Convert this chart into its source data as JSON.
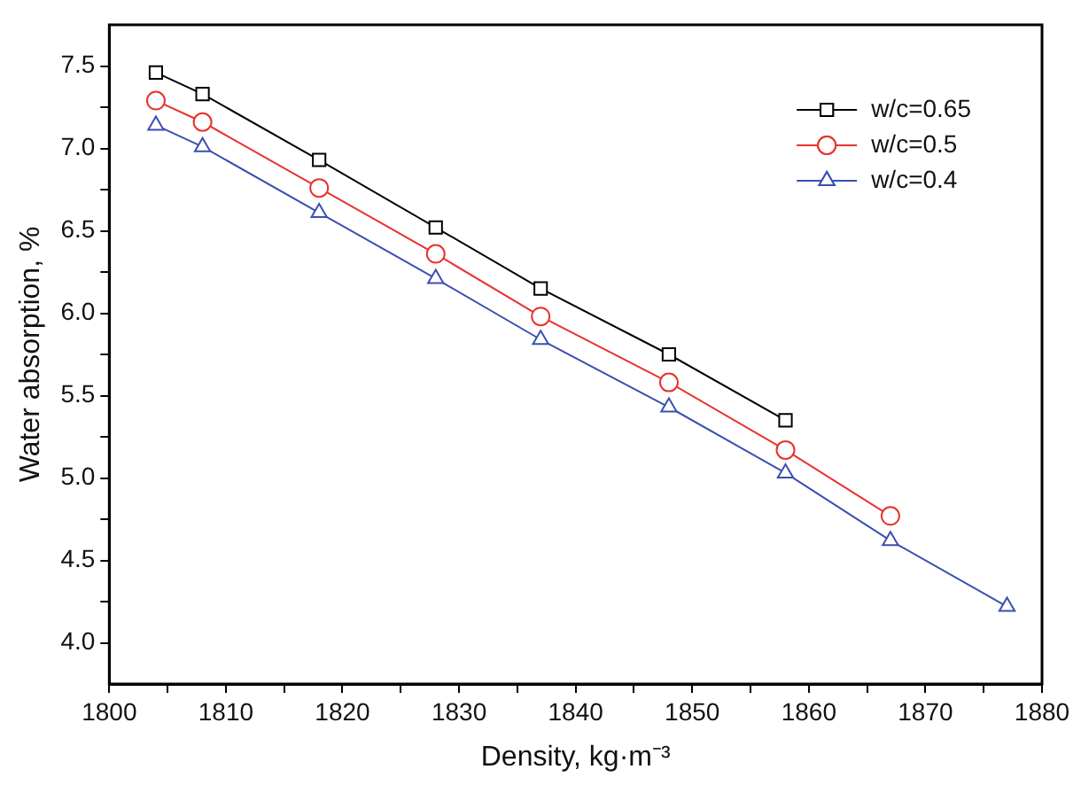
{
  "chart_data": {
    "type": "line",
    "xlabel": "Density, kg·m⁻³",
    "ylabel": "Water absorption, %",
    "xlim": [
      1800,
      1880
    ],
    "xticks": [
      1800,
      {
        "value": 1805,
        "label": null
      },
      1810,
      {
        "value": 1815,
        "label": null
      },
      1820,
      {
        "value": 1825,
        "label": null
      },
      1830,
      {
        "value": 1835,
        "label": null
      },
      1840,
      {
        "value": 1845,
        "label": null
      },
      1850,
      {
        "value": 1855,
        "label": null
      },
      1860,
      {
        "value": 1865,
        "label": null
      },
      1870,
      {
        "value": 1875,
        "label": null
      },
      1880
    ],
    "ylim": [
      3.75,
      7.75
    ],
    "yticks": [
      {
        "value": 4.0,
        "label": "4.0"
      },
      {
        "value": 4.25,
        "label": null
      },
      {
        "value": 4.5,
        "label": "4.5"
      },
      {
        "value": 4.75,
        "label": null
      },
      {
        "value": 5.0,
        "label": "5.0"
      },
      {
        "value": 5.25,
        "label": null
      },
      {
        "value": 5.5,
        "label": "5.5"
      },
      {
        "value": 5.75,
        "label": null
      },
      {
        "value": 6.0,
        "label": "6.0"
      },
      {
        "value": 6.25,
        "label": null
      },
      {
        "value": 6.5,
        "label": "6.5"
      },
      {
        "value": 6.75,
        "label": null
      },
      {
        "value": 7.0,
        "label": "7.0"
      },
      {
        "value": 7.25,
        "label": null
      },
      {
        "value": 7.5,
        "label": "7.5"
      }
    ],
    "grid": false,
    "legend": "top right",
    "line_style": "solid",
    "series": [
      {
        "name": "w/c=0.65",
        "color": "#000000",
        "marker": "square",
        "x": [
          1804,
          1808,
          1818,
          1828,
          1837,
          1848,
          1858
        ],
        "values": [
          7.46,
          7.33,
          6.93,
          6.52,
          6.15,
          5.75,
          5.35
        ]
      },
      {
        "name": "w/c=0.5",
        "color": "#e8322d",
        "marker": "circle",
        "x": [
          1804,
          1808,
          1818,
          1828,
          1837,
          1848,
          1858,
          1867
        ],
        "values": [
          7.29,
          7.16,
          6.76,
          6.36,
          5.98,
          5.58,
          5.17,
          4.77
        ]
      },
      {
        "name": "w/c=0.4",
        "color": "#3a4fb0",
        "marker": "triangle",
        "x": [
          1804,
          1808,
          1818,
          1828,
          1837,
          1848,
          1858,
          1867,
          1877
        ],
        "values": [
          7.14,
          7.01,
          6.61,
          6.21,
          5.84,
          5.43,
          5.03,
          4.62,
          4.22
        ]
      }
    ]
  }
}
